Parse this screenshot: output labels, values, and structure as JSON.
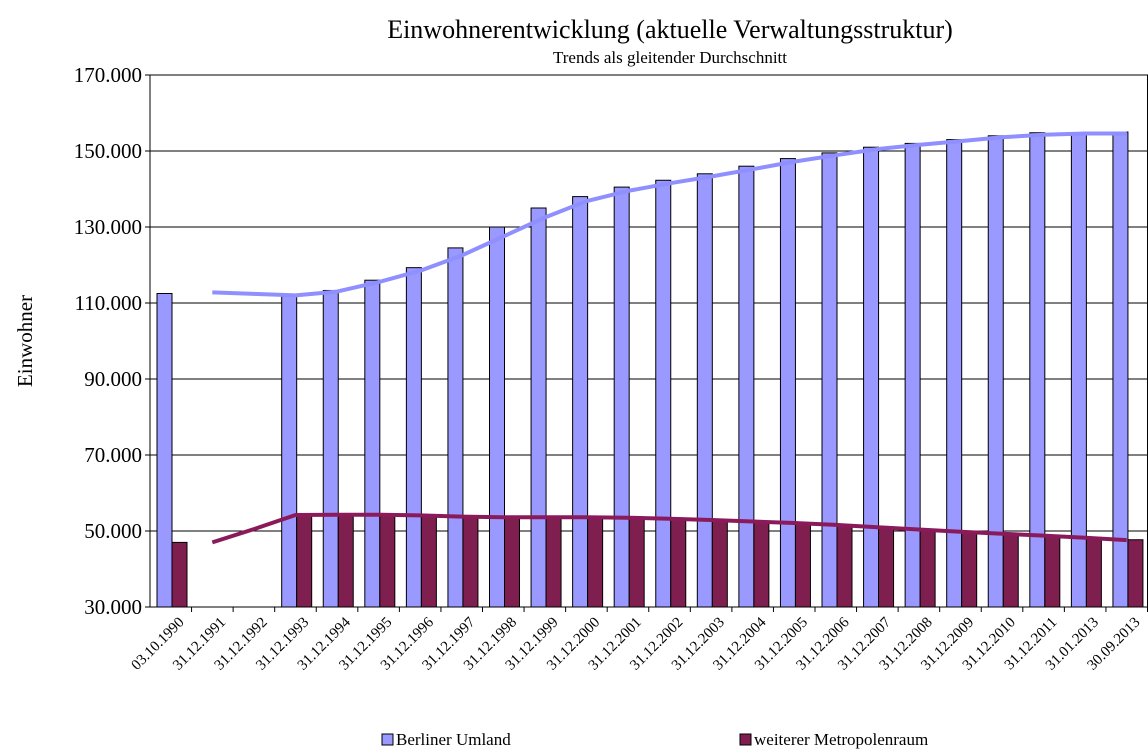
{
  "chart_data": {
    "type": "bar",
    "title": "Einwohnerentwicklung (aktuelle Verwaltungsstruktur)",
    "subtitle": "Trends als gleitender Durchschnitt",
    "y_label": "Einwohner",
    "categories": [
      "03.10.1990",
      "31.12.1991",
      "31.12.1992",
      "31.12.1993",
      "31.12.1994",
      "31.12.1995",
      "31.12.1996",
      "31.12.1997",
      "31.12.1998",
      "31.12.1999",
      "31.12.2000",
      "31.12.2001",
      "31.12.2002",
      "31.12.2003",
      "31.12.2004",
      "31.12.2005",
      "31.12.2006",
      "31.12.2007",
      "31.12.2008",
      "31.12.2009",
      "31.12.2010",
      "31.12.2011",
      "31.01.2013",
      "30.09.2013"
    ],
    "series": [
      {
        "name": "Berliner Umland",
        "color": "#9999ff",
        "trend_color": "#8f8fff",
        "values": [
          112500,
          null,
          null,
          111800,
          113300,
          116000,
          119300,
          124500,
          130000,
          135000,
          138000,
          140500,
          142300,
          144000,
          146000,
          148000,
          149500,
          151000,
          152000,
          153000,
          154000,
          154800,
          154500,
          155000
        ],
        "trend": [
          null,
          112800,
          112400,
          112000,
          113000,
          115500,
          118500,
          122500,
          127500,
          132500,
          136800,
          139500,
          141500,
          143300,
          145200,
          147200,
          148900,
          150500,
          151600,
          152600,
          153600,
          154300,
          154600,
          154600
        ]
      },
      {
        "name": "weiterer Metropolenraum",
        "color": "#7f1f4f",
        "trend_color": "#8b1a5a",
        "values": [
          47000,
          null,
          null,
          54200,
          54300,
          54200,
          54000,
          53700,
          53500,
          53500,
          53600,
          53500,
          53200,
          53000,
          52600,
          52200,
          51700,
          51100,
          50500,
          49900,
          49400,
          48900,
          48300,
          47700
        ],
        "trend": [
          null,
          47000,
          50500,
          54200,
          54300,
          54300,
          54100,
          53800,
          53600,
          53600,
          53600,
          53500,
          53200,
          52900,
          52500,
          52100,
          51600,
          51000,
          50400,
          49800,
          49300,
          48800,
          48200,
          47600
        ]
      }
    ],
    "ylim": [
      30000,
      170000
    ],
    "yticks": [
      {
        "value": 30000,
        "label": "30.000"
      },
      {
        "value": 50000,
        "label": "50.000"
      },
      {
        "value": 70000,
        "label": "70.000"
      },
      {
        "value": 90000,
        "label": "90.000"
      },
      {
        "value": 110000,
        "label": "110.000"
      },
      {
        "value": 130000,
        "label": "130.000"
      },
      {
        "value": 150000,
        "label": "150.000"
      },
      {
        "value": 170000,
        "label": "170.000"
      }
    ],
    "grid": true
  }
}
